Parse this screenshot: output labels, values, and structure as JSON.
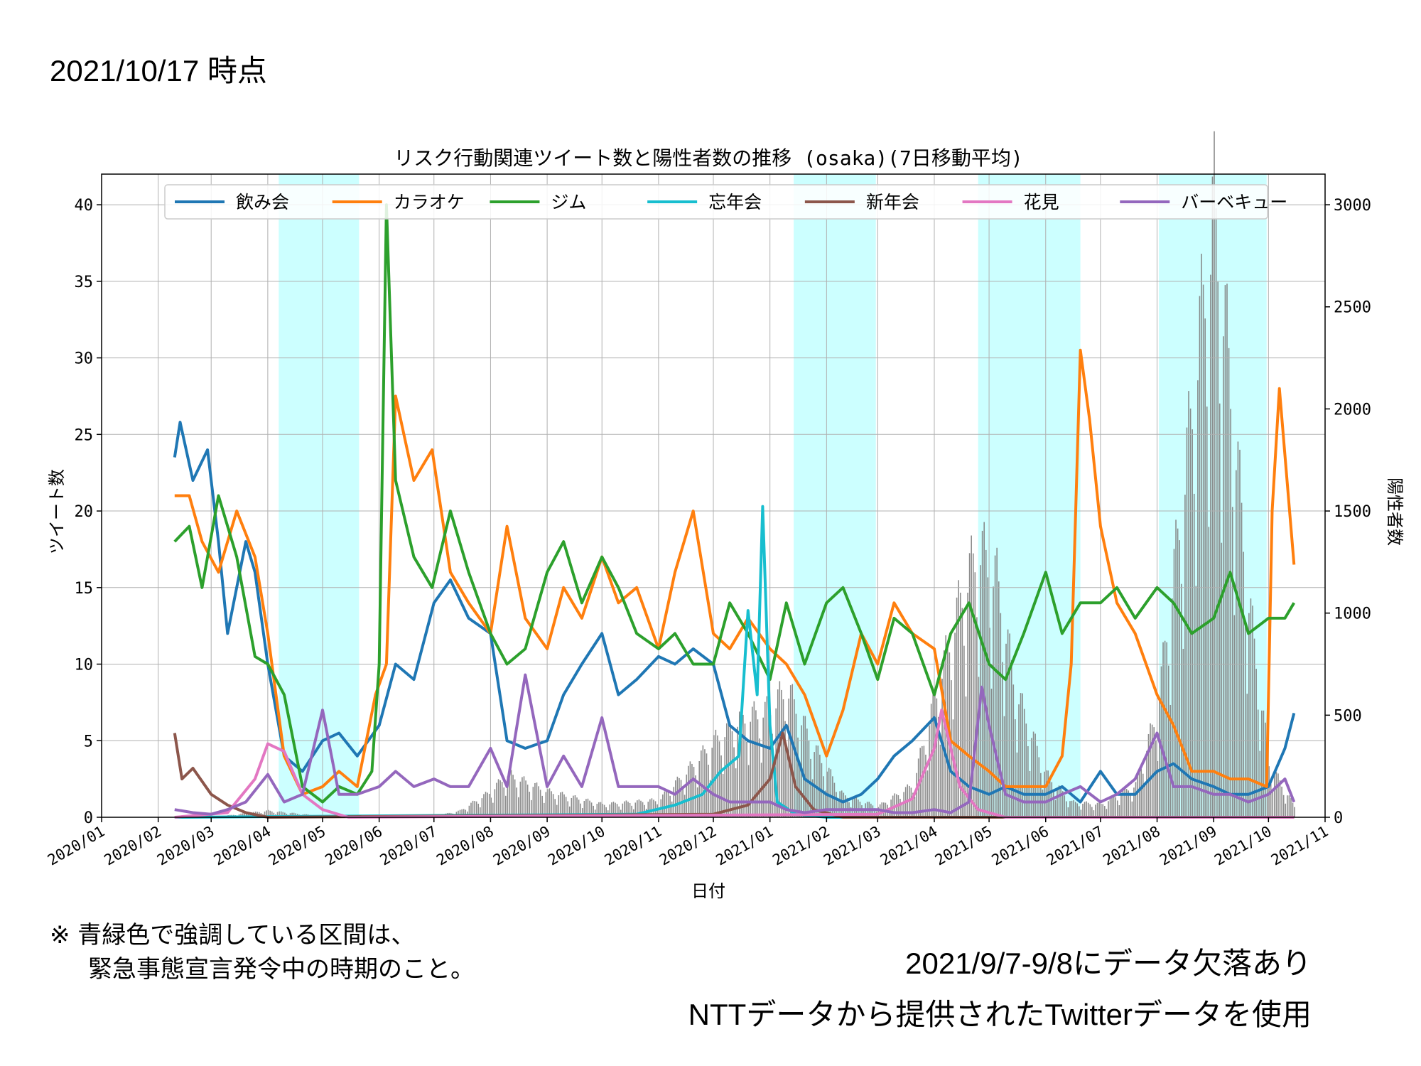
{
  "slide": {
    "as_of": "2021/10/17 時点",
    "note_line1": "※ 青緑色で強調している区間は、",
    "note_line2": "緊急事態宣言発令中の時期のこと。",
    "footer_line1": "2021/9/7-9/8にデータ欠落あり",
    "footer_line2": "NTTデータから提供されたTwitterデータを使用"
  },
  "chart_data": {
    "type": "line",
    "title": "リスク行動関連ツイート数と陽性者数の推移 (osaka)(7日移動平均)",
    "xlabel": "日付",
    "ylabel": "ツイート数",
    "y2label": "陽性者数",
    "xlim": [
      "2020-01-01",
      "2021-11-01"
    ],
    "ylim": [
      0,
      42
    ],
    "y2lim": [
      0,
      3150
    ],
    "x_tick_labels": [
      "2020/01",
      "2020/02",
      "2020/03",
      "2020/04",
      "2020/05",
      "2020/06",
      "2020/07",
      "2020/08",
      "2020/09",
      "2020/10",
      "2020/11",
      "2020/12",
      "2021/01",
      "2021/02",
      "2021/03",
      "2021/04",
      "2021/05",
      "2021/06",
      "2021/07",
      "2021/08",
      "2021/09",
      "2021/10",
      "2021/11"
    ],
    "y_ticks": [
      0,
      5,
      10,
      15,
      20,
      25,
      30,
      35,
      40
    ],
    "y2_ticks": [
      0,
      500,
      1000,
      1500,
      2000,
      2500,
      3000
    ],
    "grid": true,
    "legend_position": "top",
    "emergency_periods": [
      [
        "2020-04-07",
        "2020-05-21"
      ],
      [
        "2021-01-14",
        "2021-02-28"
      ],
      [
        "2021-04-25",
        "2021-06-20"
      ],
      [
        "2021-08-02",
        "2021-09-30"
      ]
    ],
    "positives_bar_color": "#808080",
    "positives": {
      "x": [
        "2020-03-01",
        "2020-04-01",
        "2020-05-01",
        "2020-06-01",
        "2020-07-01",
        "2020-07-15",
        "2020-08-01",
        "2020-08-10",
        "2020-09-01",
        "2020-10-01",
        "2020-11-01",
        "2020-11-15",
        "2020-12-01",
        "2020-12-15",
        "2021-01-01",
        "2021-01-10",
        "2021-01-25",
        "2021-02-10",
        "2021-03-01",
        "2021-03-20",
        "2021-04-01",
        "2021-04-15",
        "2021-04-25",
        "2021-05-05",
        "2021-05-15",
        "2021-06-01",
        "2021-06-15",
        "2021-07-01",
        "2021-07-20",
        "2021-08-01",
        "2021-08-15",
        "2021-08-25",
        "2021-09-01",
        "2021-09-10",
        "2021-09-20",
        "2021-10-01",
        "2021-10-15"
      ],
      "values": [
        0,
        30,
        5,
        0,
        5,
        30,
        120,
        200,
        120,
        60,
        80,
        200,
        350,
        450,
        500,
        600,
        320,
        100,
        50,
        150,
        550,
        1000,
        1250,
        1100,
        600,
        200,
        70,
        60,
        150,
        500,
        1500,
        2300,
        2800,
        2000,
        1000,
        250,
        50
      ]
    },
    "series": [
      {
        "name": "飲み会",
        "color": "#1f77b4",
        "x": [
          "2020-02-10",
          "2020-02-13",
          "2020-02-20",
          "2020-02-28",
          "2020-03-05",
          "2020-03-10",
          "2020-03-20",
          "2020-03-25",
          "2020-04-01",
          "2020-04-10",
          "2020-04-20",
          "2020-05-01",
          "2020-05-10",
          "2020-05-20",
          "2020-06-01",
          "2020-06-10",
          "2020-06-20",
          "2020-07-01",
          "2020-07-10",
          "2020-07-20",
          "2020-08-01",
          "2020-08-10",
          "2020-08-20",
          "2020-09-01",
          "2020-09-10",
          "2020-09-20",
          "2020-10-01",
          "2020-10-10",
          "2020-10-20",
          "2020-11-01",
          "2020-11-10",
          "2020-11-20",
          "2020-12-01",
          "2020-12-10",
          "2020-12-20",
          "2021-01-01",
          "2021-01-10",
          "2021-01-20",
          "2021-02-01",
          "2021-02-10",
          "2021-02-20",
          "2021-03-01",
          "2021-03-10",
          "2021-03-20",
          "2021-04-01",
          "2021-04-10",
          "2021-04-20",
          "2021-05-01",
          "2021-05-10",
          "2021-05-20",
          "2021-06-01",
          "2021-06-10",
          "2021-06-20",
          "2021-07-01",
          "2021-07-10",
          "2021-07-20",
          "2021-08-01",
          "2021-08-10",
          "2021-08-20",
          "2021-09-01",
          "2021-09-10",
          "2021-09-20",
          "2021-10-01",
          "2021-10-10",
          "2021-10-15"
        ],
        "values": [
          23.5,
          25.8,
          22,
          24,
          18,
          12,
          18,
          16,
          10,
          4,
          3,
          5,
          5.5,
          4,
          6,
          10,
          9,
          14,
          15.5,
          13,
          12,
          5,
          4.5,
          5,
          8,
          10,
          12,
          8,
          9,
          10.5,
          10,
          11,
          10,
          6,
          5,
          4.5,
          6,
          2.5,
          1.5,
          1,
          1.5,
          2.5,
          4,
          5,
          6.5,
          3,
          2,
          1.5,
          2,
          1.5,
          1.5,
          2,
          1,
          3,
          1.5,
          1.5,
          3,
          3.5,
          2.5,
          2,
          1.5,
          1.5,
          2,
          4.5,
          6.8
        ]
      },
      {
        "name": "カラオケ",
        "color": "#ff7f0e",
        "x": [
          "2020-02-10",
          "2020-02-18",
          "2020-02-25",
          "2020-03-05",
          "2020-03-15",
          "2020-03-25",
          "2020-04-01",
          "2020-04-10",
          "2020-04-20",
          "2020-05-01",
          "2020-05-10",
          "2020-05-20",
          "2020-05-30",
          "2020-06-05",
          "2020-06-10",
          "2020-06-20",
          "2020-06-30",
          "2020-07-10",
          "2020-07-20",
          "2020-08-01",
          "2020-08-10",
          "2020-08-20",
          "2020-09-01",
          "2020-09-10",
          "2020-09-20",
          "2020-10-01",
          "2020-10-10",
          "2020-10-20",
          "2020-11-01",
          "2020-11-10",
          "2020-11-20",
          "2020-12-01",
          "2020-12-10",
          "2020-12-20",
          "2021-01-01",
          "2021-01-10",
          "2021-01-20",
          "2021-02-01",
          "2021-02-10",
          "2021-02-20",
          "2021-03-01",
          "2021-03-10",
          "2021-03-20",
          "2021-04-01",
          "2021-04-10",
          "2021-04-20",
          "2021-05-01",
          "2021-05-10",
          "2021-05-20",
          "2021-06-01",
          "2021-06-10",
          "2021-06-15",
          "2021-06-20",
          "2021-06-25",
          "2021-07-01",
          "2021-07-10",
          "2021-07-20",
          "2021-08-01",
          "2021-08-10",
          "2021-08-20",
          "2021-09-01",
          "2021-09-10",
          "2021-09-20",
          "2021-09-30",
          "2021-10-03",
          "2021-10-07",
          "2021-10-15"
        ],
        "values": [
          21,
          21,
          18,
          16,
          20,
          17,
          12,
          4,
          1.5,
          2,
          3,
          2,
          8,
          10,
          27.5,
          22,
          24,
          16,
          14,
          12,
          19,
          13,
          11,
          15,
          13,
          17,
          14,
          15,
          11,
          16,
          20,
          12,
          11,
          13,
          11,
          10,
          8,
          4,
          7,
          12,
          10,
          14,
          12,
          11,
          5,
          4,
          3,
          2,
          2,
          2,
          4,
          10,
          30.5,
          26,
          19,
          14,
          12,
          8,
          6,
          3,
          3,
          2.5,
          2.5,
          2,
          20,
          28,
          16.5
        ]
      },
      {
        "name": "ジム",
        "color": "#2ca02c",
        "x": [
          "2020-02-10",
          "2020-02-18",
          "2020-02-25",
          "2020-03-05",
          "2020-03-15",
          "2020-03-25",
          "2020-04-01",
          "2020-04-10",
          "2020-04-20",
          "2020-05-01",
          "2020-05-10",
          "2020-05-20",
          "2020-05-28",
          "2020-06-01",
          "2020-06-05",
          "2020-06-10",
          "2020-06-20",
          "2020-06-30",
          "2020-07-10",
          "2020-07-20",
          "2020-08-01",
          "2020-08-10",
          "2020-08-20",
          "2020-09-01",
          "2020-09-10",
          "2020-09-20",
          "2020-10-01",
          "2020-10-10",
          "2020-10-20",
          "2020-11-01",
          "2020-11-10",
          "2020-11-20",
          "2020-12-01",
          "2020-12-10",
          "2020-12-20",
          "2021-01-01",
          "2021-01-10",
          "2021-01-20",
          "2021-02-01",
          "2021-02-10",
          "2021-02-20",
          "2021-03-01",
          "2021-03-10",
          "2021-03-20",
          "2021-04-01",
          "2021-04-10",
          "2021-04-20",
          "2021-05-01",
          "2021-05-10",
          "2021-05-20",
          "2021-06-01",
          "2021-06-10",
          "2021-06-20",
          "2021-07-01",
          "2021-07-10",
          "2021-07-20",
          "2021-08-01",
          "2021-08-10",
          "2021-08-20",
          "2021-09-01",
          "2021-09-10",
          "2021-09-20",
          "2021-10-01",
          "2021-10-10",
          "2021-10-15"
        ],
        "values": [
          18,
          19,
          15,
          21,
          17,
          10.5,
          10,
          8,
          2,
          1,
          2,
          1.5,
          3,
          10,
          40,
          22,
          17,
          15,
          20,
          16,
          12,
          10,
          11,
          16,
          18,
          14,
          17,
          15,
          12,
          11,
          12,
          10,
          10,
          14,
          12,
          9,
          14,
          10,
          14,
          15,
          12,
          9,
          13,
          12,
          8,
          12,
          14,
          10,
          9,
          12,
          16,
          12,
          14,
          14,
          15,
          13,
          15,
          14,
          12,
          13,
          16,
          12,
          13,
          13,
          14
        ]
      },
      {
        "name": "忘年会",
        "color": "#17becf",
        "x": [
          "2020-02-10",
          "2020-10-20",
          "2020-11-10",
          "2020-11-25",
          "2020-12-05",
          "2020-12-15",
          "2020-12-20",
          "2020-12-25",
          "2020-12-28",
          "2021-01-01",
          "2021-01-05",
          "2021-01-15",
          "2021-02-01",
          "2021-10-15"
        ],
        "values": [
          0,
          0.2,
          0.8,
          1.5,
          3,
          4,
          13.5,
          8,
          20.3,
          6,
          1,
          0.2,
          0,
          0
        ]
      },
      {
        "name": "新年会",
        "color": "#8c564b",
        "x": [
          "2020-02-10",
          "2020-02-14",
          "2020-02-20",
          "2020-03-01",
          "2020-03-10",
          "2020-03-20",
          "2020-04-01",
          "2020-12-01",
          "2020-12-20",
          "2021-01-01",
          "2021-01-08",
          "2021-01-15",
          "2021-01-25",
          "2021-02-10",
          "2021-10-15"
        ],
        "values": [
          5.5,
          2.5,
          3.2,
          1.5,
          0.8,
          0.3,
          0,
          0.2,
          0.8,
          2.5,
          5.5,
          2,
          0.5,
          0,
          0
        ]
      },
      {
        "name": "花見",
        "color": "#e377c2",
        "x": [
          "2020-02-10",
          "2020-03-10",
          "2020-03-25",
          "2020-04-01",
          "2020-04-10",
          "2020-04-20",
          "2020-05-01",
          "2020-05-15",
          "2021-03-01",
          "2021-03-20",
          "2021-04-01",
          "2021-04-05",
          "2021-04-15",
          "2021-04-25",
          "2021-05-10",
          "2021-10-15"
        ],
        "values": [
          0,
          0.3,
          2.5,
          4.8,
          4.3,
          1.5,
          0.5,
          0,
          0.2,
          1.2,
          4.5,
          7,
          2,
          0.5,
          0,
          0
        ]
      },
      {
        "name": "バーベキュー",
        "color": "#9467bd",
        "x": [
          "2020-02-10",
          "2020-02-20",
          "2020-03-01",
          "2020-03-10",
          "2020-03-20",
          "2020-04-01",
          "2020-04-10",
          "2020-04-20",
          "2020-05-01",
          "2020-05-10",
          "2020-05-20",
          "2020-06-01",
          "2020-06-10",
          "2020-06-20",
          "2020-07-01",
          "2020-07-10",
          "2020-07-20",
          "2020-08-01",
          "2020-08-10",
          "2020-08-20",
          "2020-09-01",
          "2020-09-10",
          "2020-09-20",
          "2020-10-01",
          "2020-10-10",
          "2020-10-20",
          "2020-11-01",
          "2020-11-10",
          "2020-11-20",
          "2020-12-01",
          "2020-12-10",
          "2020-12-20",
          "2021-01-01",
          "2021-01-10",
          "2021-01-20",
          "2021-02-01",
          "2021-02-10",
          "2021-02-20",
          "2021-03-01",
          "2021-03-10",
          "2021-03-20",
          "2021-04-01",
          "2021-04-10",
          "2021-04-20",
          "2021-04-27",
          "2021-05-01",
          "2021-05-10",
          "2021-05-20",
          "2021-06-01",
          "2021-06-10",
          "2021-06-20",
          "2021-07-01",
          "2021-07-10",
          "2021-07-20",
          "2021-08-01",
          "2021-08-10",
          "2021-08-20",
          "2021-09-01",
          "2021-09-10",
          "2021-09-20",
          "2021-10-01",
          "2021-10-10",
          "2021-10-15"
        ],
        "values": [
          0.5,
          0.3,
          0.2,
          0.5,
          1,
          2.8,
          1,
          1.5,
          7,
          1.5,
          1.5,
          2,
          3,
          2,
          2.5,
          2,
          2,
          4.5,
          2,
          9.3,
          2,
          4,
          2,
          6.5,
          2,
          2,
          2,
          1.5,
          2.5,
          1.5,
          1,
          1,
          1,
          0.5,
          0.3,
          0.5,
          0.5,
          0.5,
          0.5,
          0.3,
          0.3,
          0.5,
          0.3,
          1,
          8.5,
          6,
          1.5,
          1,
          1,
          1.5,
          2,
          1,
          1.5,
          2.5,
          5.5,
          2,
          2,
          1.5,
          1.5,
          1,
          1.5,
          2.5,
          1
        ]
      }
    ]
  }
}
